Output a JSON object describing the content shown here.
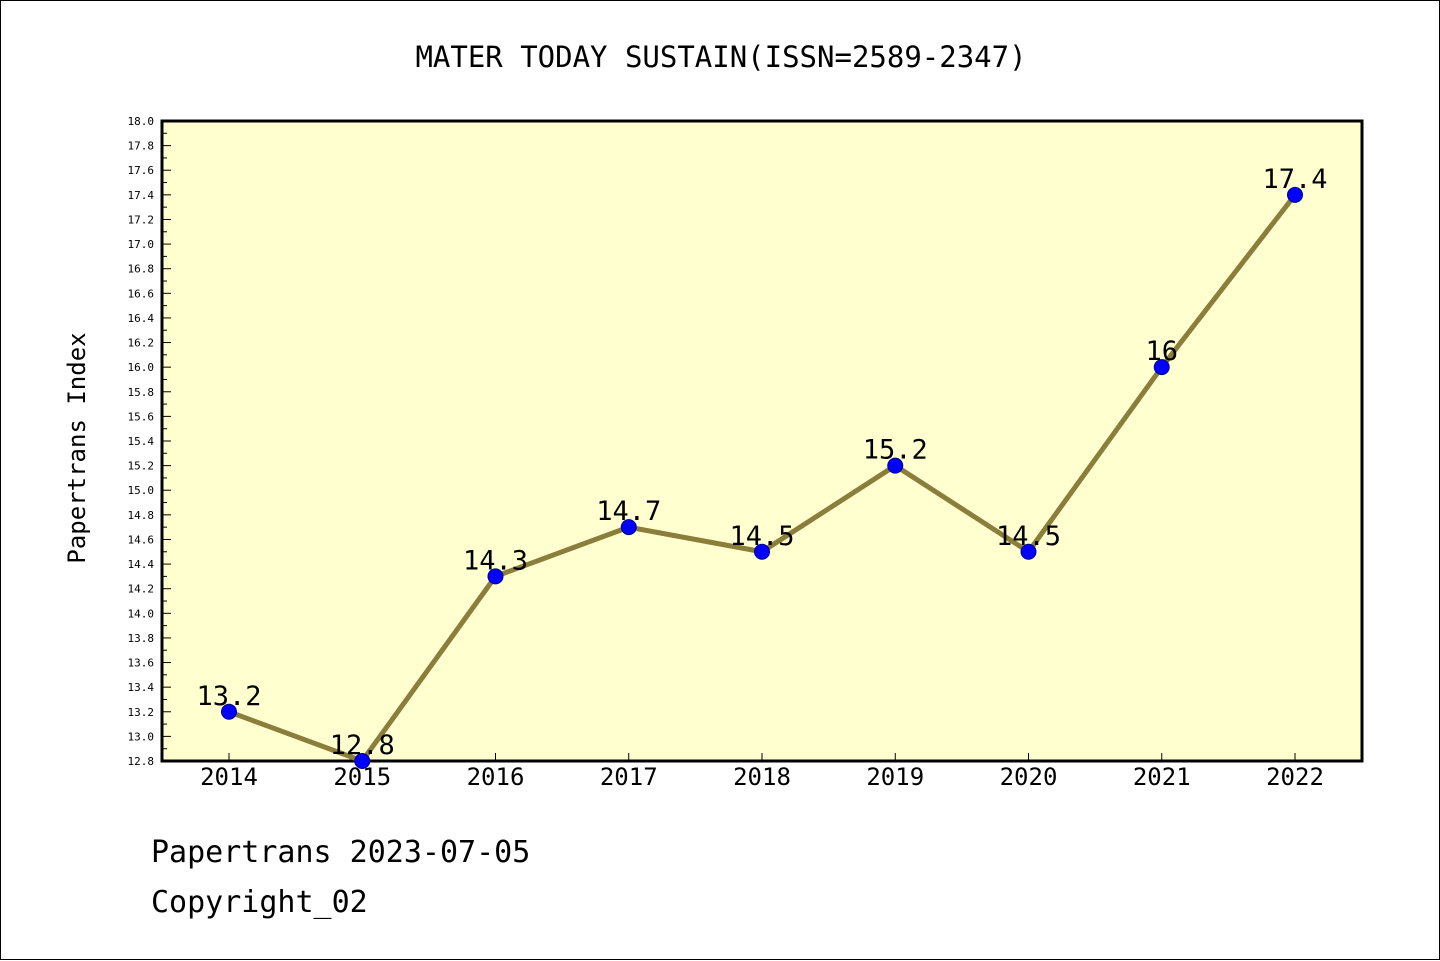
{
  "chart_data": {
    "type": "line",
    "title": "MATER TODAY SUSTAIN(ISSN=2589-2347)",
    "ylabel": "Papertrans Index",
    "xlabel": "",
    "categories": [
      "2014",
      "2015",
      "2016",
      "2017",
      "2018",
      "2019",
      "2020",
      "2021",
      "2022"
    ],
    "series": [
      {
        "values": [
          13.2,
          12.8,
          14.3,
          14.7,
          14.5,
          15.2,
          14.5,
          16,
          17.4
        ],
        "data_labels": [
          "13.2",
          "12.8",
          "14.3",
          "14.7",
          "14.5",
          "15.2",
          "14.5",
          "16",
          "17.4"
        ]
      }
    ],
    "ylim": [
      12.8,
      18.0
    ],
    "y_major_step": 0.2,
    "y_tick_labels": [
      "12.8",
      "13.0",
      "13.2",
      "13.4",
      "13.6",
      "13.8",
      "14.0",
      "14.2",
      "14.4",
      "14.6",
      "14.8",
      "15.0",
      "15.2",
      "15.4",
      "15.6",
      "15.8",
      "16.0",
      "16.2",
      "16.4",
      "16.6",
      "16.8",
      "17.0",
      "17.2",
      "17.4",
      "17.6",
      "17.8",
      "18.0"
    ],
    "grid": false,
    "legend": "none",
    "colors": {
      "plot_background": "#FFFFD0",
      "line": "#8B7D3A",
      "marker": "#0000FF",
      "marker_edge": "#00008B",
      "axes": "#000000"
    }
  },
  "footer": {
    "line1": "Papertrans 2023-07-05",
    "line2": "Copyright_02"
  }
}
